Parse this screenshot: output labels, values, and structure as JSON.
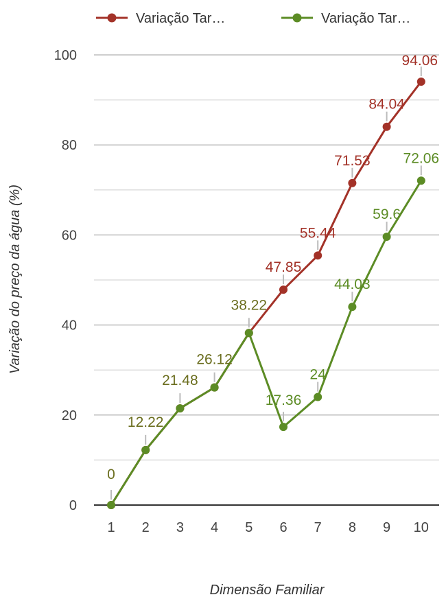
{
  "chart_data": {
    "type": "line",
    "title": "",
    "xlabel": "Dimensão Familiar",
    "ylabel": "Variação do preço da água (%)",
    "categories": [
      "1",
      "2",
      "3",
      "4",
      "5",
      "6",
      "7",
      "8",
      "9",
      "10"
    ],
    "ylim": [
      0,
      100
    ],
    "yticks": [
      0,
      20,
      40,
      60,
      80,
      100
    ],
    "grid": true,
    "legend_position": "top",
    "series": [
      {
        "name": "Variação Tar…",
        "color": "#a33228",
        "values": [
          0,
          12.22,
          21.48,
          26.12,
          38.22,
          47.85,
          55.44,
          71.53,
          84.04,
          94.06
        ],
        "labels": [
          "0",
          "12.22",
          "21.48",
          "26.12",
          "38.22",
          "47.85",
          "55.44",
          "71.53",
          "84.04",
          "94.06"
        ]
      },
      {
        "name": "Variação Tar…",
        "color": "#5c8c25",
        "values": [
          0,
          12.22,
          21.48,
          26.12,
          38.22,
          17.36,
          24,
          44.03,
          59.6,
          72.06
        ],
        "labels": [
          "0",
          "12.22",
          "21.48",
          "26.12",
          "38.22",
          "17.36",
          "24",
          "44.03",
          "59.6",
          "72.06"
        ]
      }
    ],
    "shared_label_color": "#6b6e1f"
  }
}
